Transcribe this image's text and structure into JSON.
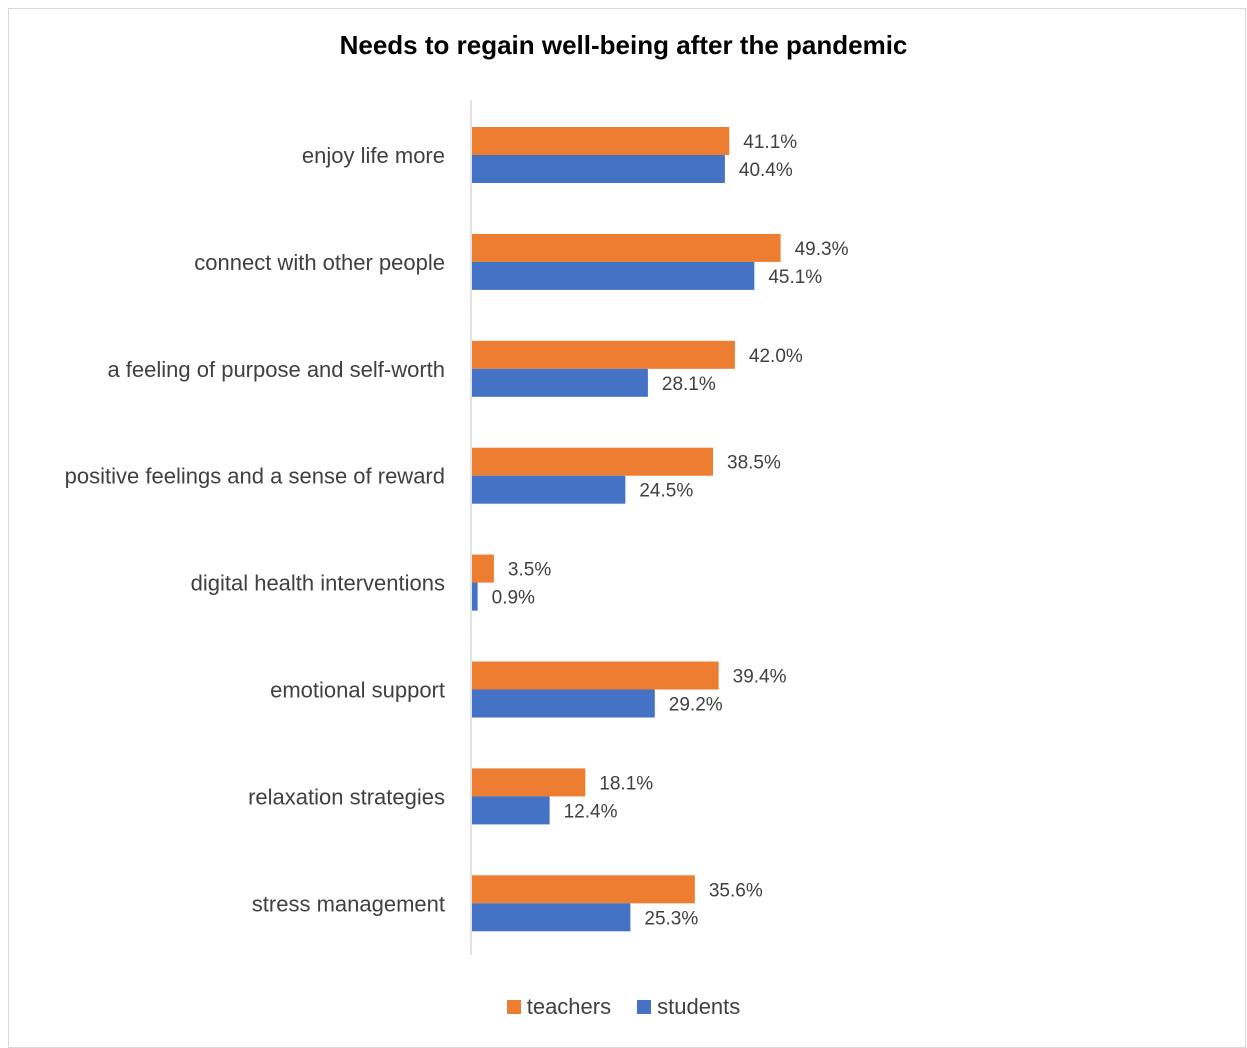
{
  "chart_data": {
    "type": "bar",
    "orientation": "horizontal",
    "title": "Needs to regain well-being after the pandemic",
    "categories": [
      "enjoy life more",
      "connect with other people",
      "a feeling of purpose and self-worth",
      "positive feelings and a sense of reward",
      "digital health interventions",
      "emotional support",
      "relaxation strategies",
      "stress management"
    ],
    "series": [
      {
        "name": "teachers",
        "color": "#ED7D31",
        "values": [
          41.1,
          49.3,
          42.0,
          38.5,
          3.5,
          39.4,
          18.1,
          35.6
        ],
        "labels": [
          "41.1%",
          "49.3%",
          "42.0%",
          "38.5%",
          "3.5%",
          "39.4%",
          "18.1%",
          "35.6%"
        ]
      },
      {
        "name": "students",
        "color": "#4472C4",
        "values": [
          40.4,
          45.1,
          28.1,
          24.5,
          0.9,
          29.2,
          12.4,
          25.3
        ],
        "labels": [
          "40.4%",
          "45.1%",
          "28.1%",
          "24.5%",
          "0.9%",
          "29.2%",
          "12.4%",
          "25.3%"
        ]
      }
    ],
    "xlabel": "",
    "ylabel": "",
    "xlim": [
      0,
      100
    ],
    "grid": false,
    "legend_position": "bottom"
  }
}
